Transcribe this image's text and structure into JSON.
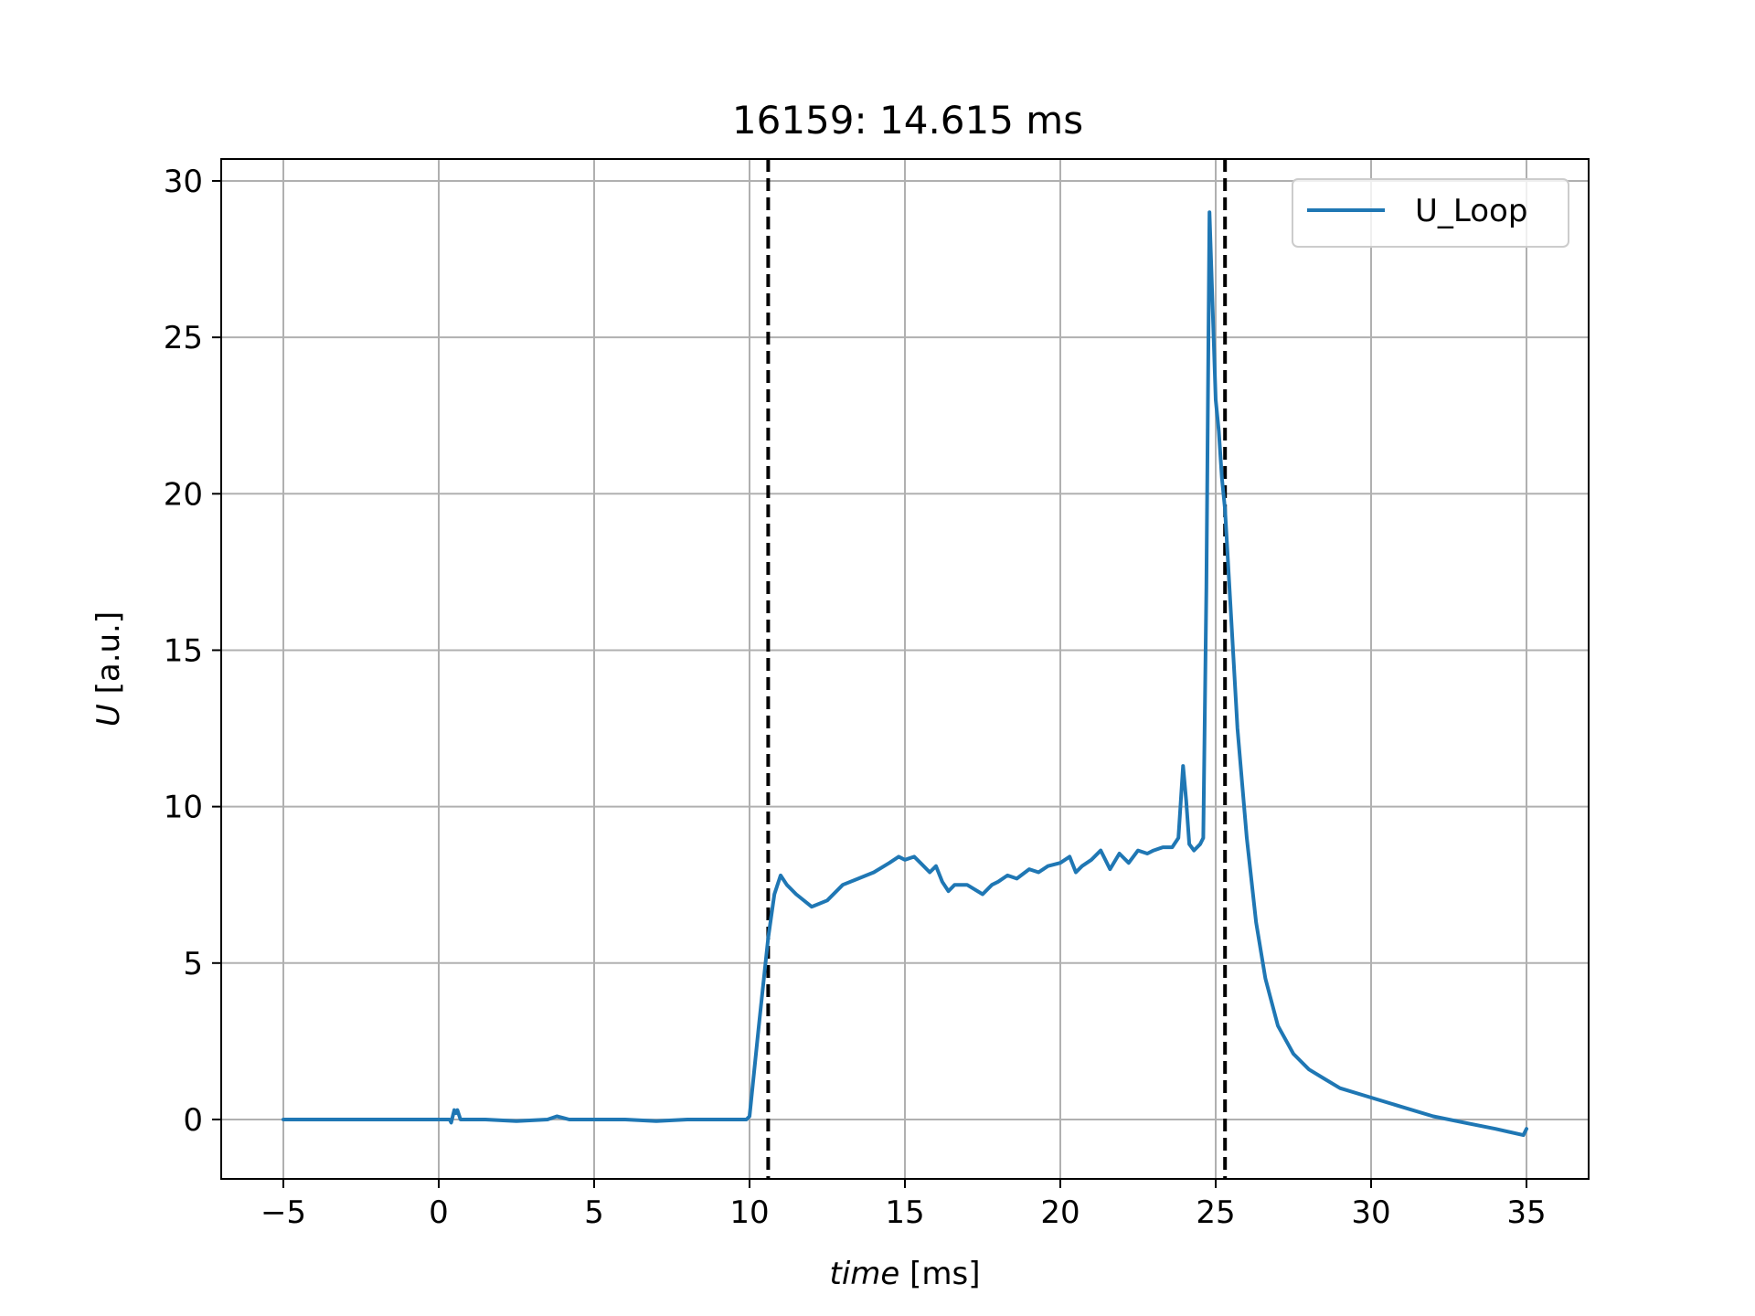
{
  "chart_data": {
    "type": "line",
    "title": "16159: 14.615 ms",
    "xlabel_italic": "time",
    "xlabel_unit": "[ms]",
    "ylabel_italic": "U",
    "ylabel_unit": "[a.u.]",
    "xlim": [
      -7,
      37
    ],
    "ylim": [
      -1.9,
      30.7
    ],
    "xticks": [
      -5,
      0,
      5,
      10,
      15,
      20,
      25,
      30,
      35
    ],
    "xtick_labels": [
      "−5",
      "0",
      "5",
      "10",
      "15",
      "20",
      "25",
      "30",
      "35"
    ],
    "yticks": [
      0,
      5,
      10,
      15,
      20,
      25,
      30
    ],
    "ytick_labels": [
      "0",
      "5",
      "10",
      "15",
      "20",
      "25",
      "30"
    ],
    "grid": true,
    "legend_position": "top-right",
    "vlines": [
      10.6,
      25.3
    ],
    "colors": {
      "series": "#1f77b4",
      "grid": "#b0b0b0",
      "vline": "#000000"
    },
    "series": [
      {
        "name": "U_Loop",
        "x": [
          -5,
          0,
          0.35,
          0.4,
          0.45,
          0.5,
          0.55,
          0.6,
          0.7,
          0.8,
          1.5,
          2.5,
          3.5,
          3.8,
          4.0,
          4.2,
          5,
          6,
          7,
          8,
          8.5,
          9,
          9.5,
          9.9,
          10.0,
          10.3,
          10.6,
          10.8,
          11.0,
          11.2,
          11.5,
          12.0,
          12.5,
          13.0,
          13.5,
          14.0,
          14.5,
          14.8,
          15.0,
          15.3,
          15.5,
          15.8,
          16.0,
          16.2,
          16.4,
          16.6,
          17.0,
          17.5,
          17.8,
          18.0,
          18.3,
          18.6,
          19.0,
          19.3,
          19.6,
          20.0,
          20.3,
          20.5,
          20.7,
          21.0,
          21.3,
          21.6,
          21.9,
          22.2,
          22.5,
          22.8,
          23.0,
          23.3,
          23.6,
          23.8,
          23.95,
          24.05,
          24.15,
          24.3,
          24.5,
          24.6,
          24.7,
          24.8,
          24.9,
          25.0,
          25.1,
          25.2,
          25.3,
          25.5,
          25.7,
          26.0,
          26.3,
          26.6,
          27.0,
          27.5,
          28.0,
          28.5,
          29.0,
          30.0,
          31.0,
          32.0,
          33.0,
          34.0,
          34.9,
          35.0
        ],
        "values": [
          0.0,
          0.0,
          0.0,
          -0.1,
          0.1,
          0.3,
          0.2,
          0.3,
          0.0,
          0.0,
          0.0,
          -0.05,
          0.0,
          0.1,
          0.05,
          0.0,
          0.0,
          0.0,
          -0.05,
          0.0,
          0.0,
          0.0,
          0.0,
          0.0,
          0.1,
          3.0,
          5.8,
          7.2,
          7.8,
          7.5,
          7.2,
          6.8,
          7.0,
          7.5,
          7.7,
          7.9,
          8.2,
          8.4,
          8.3,
          8.4,
          8.2,
          7.9,
          8.1,
          7.6,
          7.3,
          7.5,
          7.5,
          7.2,
          7.5,
          7.6,
          7.8,
          7.7,
          8.0,
          7.9,
          8.1,
          8.2,
          8.4,
          7.9,
          8.1,
          8.3,
          8.6,
          8.0,
          8.5,
          8.2,
          8.6,
          8.5,
          8.6,
          8.7,
          8.7,
          9.0,
          11.3,
          10.2,
          8.8,
          8.6,
          8.8,
          9.0,
          17.0,
          29.0,
          26.0,
          23.0,
          22.0,
          20.5,
          19.5,
          16.0,
          12.5,
          9.0,
          6.3,
          4.5,
          3.0,
          2.1,
          1.6,
          1.3,
          1.0,
          0.7,
          0.4,
          0.1,
          -0.1,
          -0.3,
          -0.5,
          -0.3
        ]
      }
    ]
  }
}
